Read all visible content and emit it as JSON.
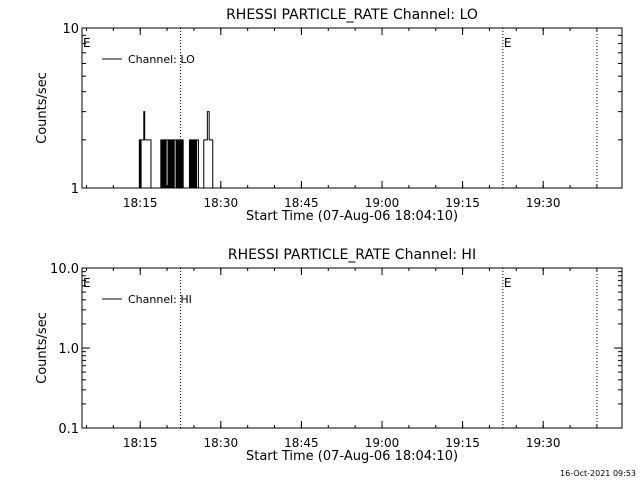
{
  "timestamp": "16-Oct-2021 09:53",
  "chart_data": [
    {
      "type": "line",
      "title": "RHESSI PARTICLE_RATE Channel: LO",
      "xlabel": "Start Time (07-Aug-06 18:04:10)",
      "ylabel": "Counts/sec",
      "yscale": "log",
      "xlim": [
        "18:04:10",
        "19:44:40"
      ],
      "ylim": [
        1,
        10
      ],
      "x_ticks": [
        "18:15",
        "18:30",
        "18:45",
        "19:00",
        "19:15",
        "19:30"
      ],
      "y_ticks": [
        "1",
        "10"
      ],
      "legend": {
        "position": "top-left",
        "entries": [
          "Channel: LO"
        ]
      },
      "markers": [
        {
          "time": "18:04:10",
          "label": "E"
        },
        {
          "time": "18:22:30",
          "label": ""
        },
        {
          "time": "19:22:30",
          "label": "E"
        },
        {
          "time": "19:40:00",
          "label": ""
        }
      ],
      "series": [
        {
          "name": "Channel: LO",
          "x": [
            "18:14:30",
            "18:14:40",
            "18:14:50",
            "18:15:00",
            "18:15:10",
            "18:15:20",
            "18:15:30",
            "18:15:40",
            "18:15:50",
            "18:16:00",
            "18:16:10",
            "18:16:20",
            "18:16:30",
            "18:16:40",
            "18:16:50",
            "18:17:00",
            "18:17:10",
            "18:17:20",
            "18:17:30",
            "18:17:40",
            "18:17:50",
            "18:18:00",
            "18:18:10",
            "18:18:20",
            "18:18:30",
            "18:18:40",
            "18:18:50",
            "18:19:00",
            "18:19:10",
            "18:19:20",
            "18:19:30",
            "18:19:40",
            "18:19:50",
            "18:20:00",
            "18:20:10",
            "18:20:20",
            "18:20:30",
            "18:20:40",
            "18:20:50",
            "18:21:00",
            "18:21:10",
            "18:21:20",
            "18:21:30",
            "18:21:40",
            "18:21:50",
            "18:22:00",
            "18:22:10",
            "18:22:20",
            "18:22:30",
            "18:22:40",
            "18:22:50",
            "18:23:00",
            "18:23:10",
            "18:23:20",
            "18:23:30",
            "18:23:40",
            "18:23:50",
            "18:24:00",
            "18:24:10",
            "18:24:20",
            "18:24:30",
            "18:24:40",
            "18:24:50",
            "18:25:00",
            "18:25:10",
            "18:25:20",
            "18:25:30",
            "18:25:40",
            "18:25:50",
            "18:26:00",
            "18:26:10",
            "18:26:20",
            "18:26:30",
            "18:26:40",
            "18:26:50",
            "18:27:00",
            "18:27:10",
            "18:27:20",
            "18:27:30",
            "18:27:40",
            "18:27:50",
            "18:28:00",
            "18:28:10",
            "18:28:20",
            "18:28:30",
            "18:28:40",
            "18:28:50",
            "18:29:00",
            "18:29:10",
            "18:29:20",
            "18:29:30"
          ],
          "y": [
            1,
            1,
            2,
            1,
            2,
            2,
            2,
            3,
            2,
            2,
            2,
            2,
            2,
            2,
            2,
            1,
            1,
            1,
            1,
            1,
            1,
            1,
            1,
            1,
            1,
            1,
            2,
            1,
            2,
            1,
            2,
            1,
            2,
            2,
            1,
            2,
            1,
            2,
            1,
            2,
            1,
            2,
            2,
            1,
            2,
            1,
            2,
            1,
            2,
            1,
            2,
            1,
            1,
            1,
            1,
            1,
            1,
            1,
            2,
            1,
            2,
            1,
            2,
            1,
            2,
            1,
            2,
            2,
            1,
            1,
            1,
            1,
            1,
            1,
            2,
            2,
            2,
            2,
            3,
            3,
            2,
            2,
            2,
            2,
            1,
            1,
            1,
            1,
            1,
            1,
            1
          ]
        }
      ]
    },
    {
      "type": "line",
      "title": "RHESSI PARTICLE_RATE Channel: HI",
      "xlabel": "Start Time (07-Aug-06 18:04:10)",
      "ylabel": "Counts/sec",
      "yscale": "log",
      "xlim": [
        "18:04:10",
        "19:44:40"
      ],
      "ylim": [
        0.1,
        10
      ],
      "x_ticks": [
        "18:15",
        "18:30",
        "18:45",
        "19:00",
        "19:15",
        "19:30"
      ],
      "y_ticks": [
        "0.1",
        "1.0",
        "10.0"
      ],
      "legend": {
        "position": "top-left",
        "entries": [
          "Channel: HI"
        ]
      },
      "markers": [
        {
          "time": "18:04:10",
          "label": "E"
        },
        {
          "time": "18:22:30",
          "label": ""
        },
        {
          "time": "19:22:30",
          "label": "E"
        },
        {
          "time": "19:40:00",
          "label": ""
        }
      ],
      "series": [
        {
          "name": "Channel: HI",
          "x": [],
          "y": []
        }
      ]
    }
  ]
}
